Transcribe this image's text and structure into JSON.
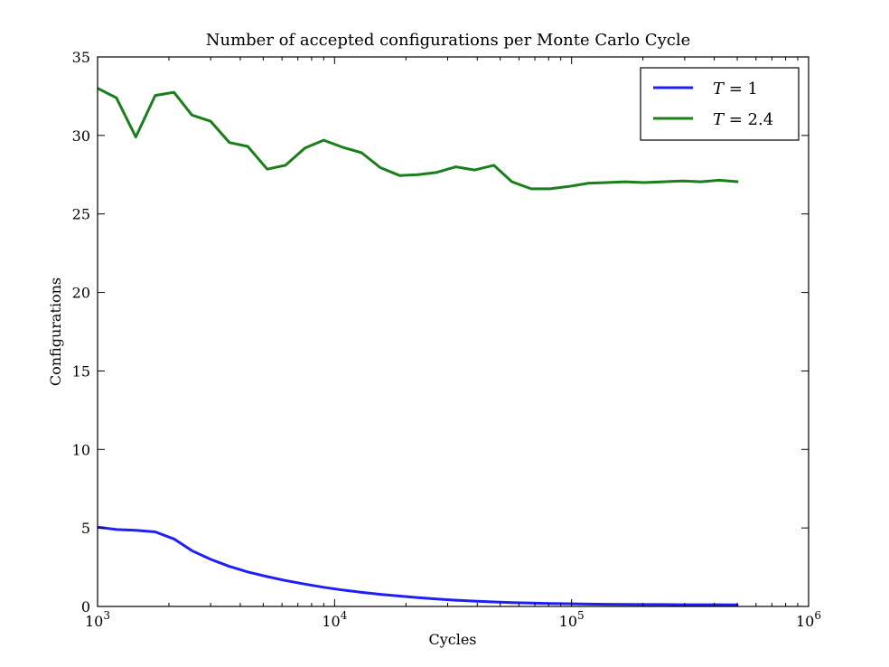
{
  "chart_data": {
    "type": "line",
    "title": "Number of accepted configurations per Monte Carlo Cycle",
    "xlabel": "Cycles",
    "ylabel": "Configurations",
    "xscale": "log",
    "xlim": [
      1000,
      1000000
    ],
    "ylim": [
      0,
      35
    ],
    "yticks": [
      0,
      5,
      10,
      15,
      20,
      25,
      30,
      35
    ],
    "xticks": [
      {
        "value": 1000,
        "base": "10",
        "exp": "3"
      },
      {
        "value": 10000,
        "base": "10",
        "exp": "4"
      },
      {
        "value": 100000,
        "base": "10",
        "exp": "5"
      },
      {
        "value": 1000000,
        "base": "10",
        "exp": "6"
      }
    ],
    "grid": false,
    "legend_position": "top-right",
    "series": [
      {
        "name": "T = 1",
        "legend_var": "T",
        "legend_rest": " = 1",
        "color": "#1f1ff5",
        "x": [
          1000,
          1200,
          1450,
          1750,
          2100,
          2500,
          3000,
          3600,
          4300,
          5200,
          6200,
          7500,
          9000,
          10800,
          13000,
          15600,
          18800,
          22500,
          27000,
          32500,
          39000,
          47000,
          56000,
          67500,
          81000,
          97500,
          117000,
          140000,
          168000,
          202000,
          243000,
          292000,
          350000,
          420000,
          505000
        ],
        "values": [
          5.05,
          4.9,
          4.85,
          4.75,
          4.3,
          3.55,
          3.0,
          2.55,
          2.2,
          1.9,
          1.65,
          1.42,
          1.22,
          1.05,
          0.9,
          0.77,
          0.66,
          0.56,
          0.47,
          0.4,
          0.34,
          0.29,
          0.25,
          0.22,
          0.19,
          0.17,
          0.15,
          0.14,
          0.13,
          0.12,
          0.12,
          0.11,
          0.11,
          0.11,
          0.1
        ]
      },
      {
        "name": "T = 2.4",
        "legend_var": "T",
        "legend_rest": " = 2.4",
        "color": "#1a7f1a",
        "x": [
          1000,
          1200,
          1450,
          1750,
          2100,
          2500,
          3000,
          3600,
          4300,
          5200,
          6200,
          7500,
          9000,
          10800,
          13000,
          15600,
          18800,
          22500,
          27000,
          32500,
          39000,
          47000,
          56000,
          67500,
          81000,
          97500,
          117000,
          140000,
          168000,
          202000,
          243000,
          292000,
          350000,
          420000,
          505000
        ],
        "values": [
          33.0,
          32.4,
          29.9,
          32.55,
          32.75,
          31.3,
          30.9,
          29.55,
          29.3,
          27.85,
          28.1,
          29.2,
          29.7,
          29.25,
          28.9,
          27.95,
          27.45,
          27.5,
          27.65,
          28.0,
          27.8,
          28.1,
          27.05,
          26.6,
          26.6,
          26.75,
          26.95,
          27.0,
          27.05,
          27.0,
          27.05,
          27.1,
          27.05,
          27.15,
          27.05
        ]
      }
    ]
  }
}
